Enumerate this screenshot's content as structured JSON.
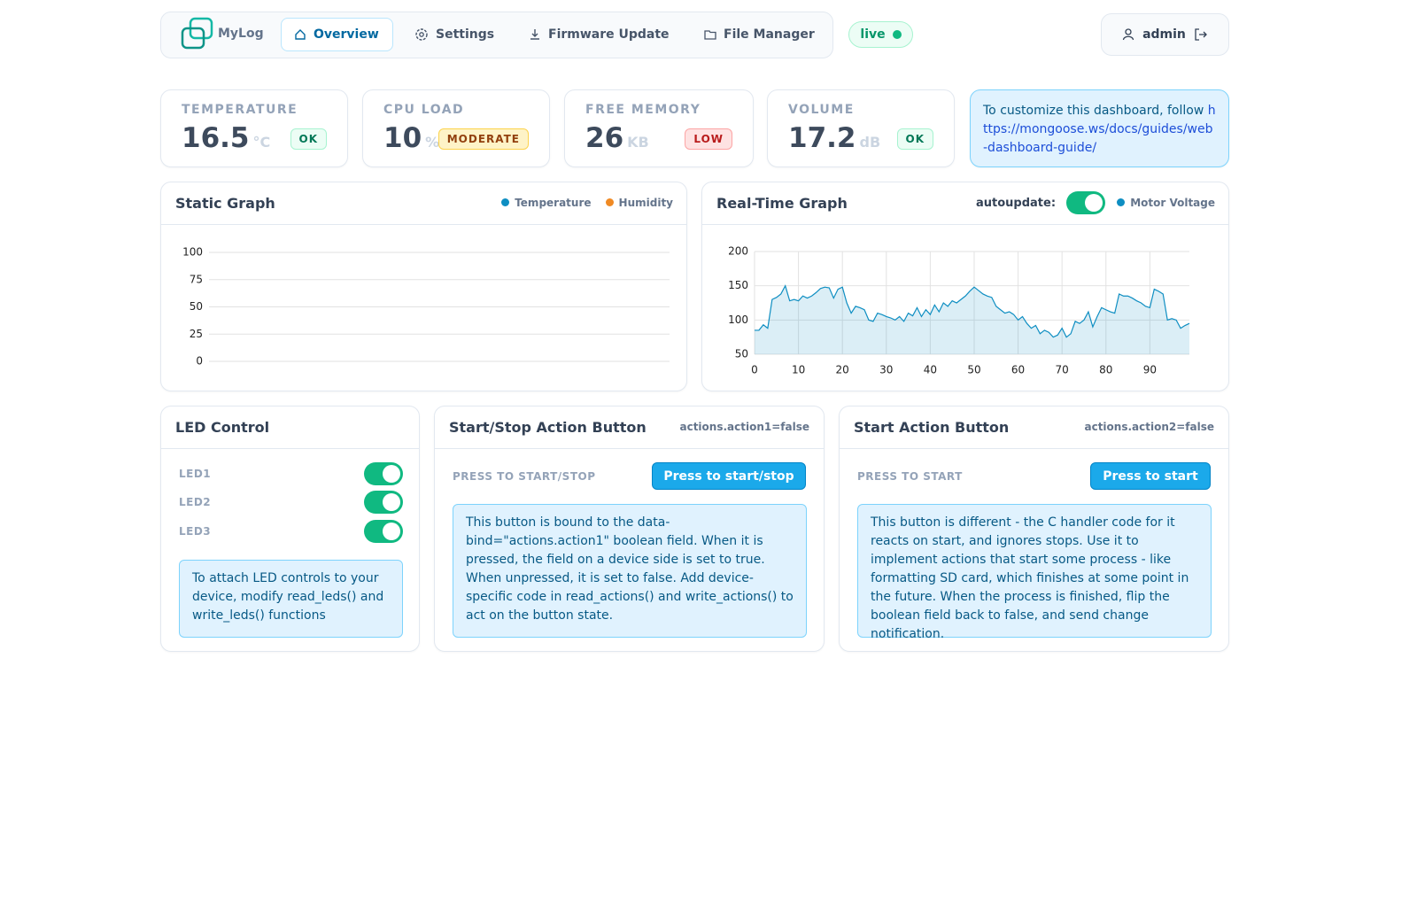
{
  "nav": {
    "brand": "MyLog",
    "items": [
      "Overview",
      "Settings",
      "Firmware Update",
      "File Manager"
    ],
    "status": "live",
    "user": "admin"
  },
  "stats": [
    {
      "label": "TEMPERATURE",
      "value": 16.5,
      "unit": "°C",
      "badge": "OK"
    },
    {
      "label": "CPU LOAD",
      "value": 10,
      "unit": "%",
      "badge": "MODERATE"
    },
    {
      "label": "FREE MEMORY",
      "value": 26,
      "unit": "KB",
      "badge": "LOW"
    },
    {
      "label": "VOLUME",
      "value": 17.2,
      "unit": "dB",
      "badge": "OK"
    }
  ],
  "info": {
    "text": "To customize this dashboard, follow",
    "link": "https://mongoose.ws/docs/guides/web-dashboard-guide/"
  },
  "static_graph": {
    "type": "line",
    "title": "Static Graph",
    "series": [
      {
        "name": "Temperature",
        "color": "#0e8ec2",
        "values": []
      },
      {
        "name": "Humidity",
        "color": "#f08a24",
        "values": []
      }
    ],
    "ylim": [
      0,
      100
    ],
    "yticks": [
      0,
      25,
      50,
      75,
      100
    ],
    "grid": true
  },
  "realtime_graph": {
    "type": "area",
    "title": "Real-Time Graph",
    "autoupdate": "autoupdate:",
    "x": [
      0,
      1,
      2,
      3,
      4,
      5,
      6,
      7,
      8,
      9,
      10,
      11,
      12,
      13,
      14,
      15,
      16,
      17,
      18,
      19,
      20,
      21,
      22,
      23,
      24,
      25,
      26,
      27,
      28,
      29,
      30,
      31,
      32,
      33,
      34,
      35,
      36,
      37,
      38,
      39,
      40,
      41,
      42,
      43,
      44,
      45,
      46,
      47,
      48,
      49,
      50,
      51,
      52,
      53,
      54,
      55,
      56,
      57,
      58,
      59,
      60,
      61,
      62,
      63,
      64,
      65,
      66,
      67,
      68,
      69,
      70,
      71,
      72,
      73,
      74,
      75,
      76,
      77,
      78,
      79,
      80,
      81,
      82,
      83,
      84,
      85,
      86,
      87,
      88,
      89,
      90,
      91,
      92,
      93,
      94,
      95,
      96,
      97,
      98,
      99
    ],
    "series": [
      {
        "name": "Motor Voltage",
        "color": "#0e8ec2",
        "values": [
          85,
          85,
          93,
          88,
          130,
          133,
          138,
          150,
          128,
          130,
          128,
          135,
          132,
          135,
          140,
          146,
          148,
          147,
          132,
          145,
          148,
          125,
          110,
          120,
          118,
          115,
          100,
          98,
          110,
          108,
          105,
          103,
          100,
          105,
          98,
          110,
          106,
          118,
          105,
          115,
          108,
          122,
          112,
          125,
          120,
          128,
          125,
          130,
          135,
          142,
          148,
          143,
          138,
          135,
          133,
          120,
          115,
          110,
          112,
          108,
          100,
          105,
          95,
          88,
          92,
          80,
          85,
          82,
          75,
          78,
          88,
          75,
          80,
          98,
          95,
          100,
          112,
          90,
          105,
          118,
          115,
          112,
          110,
          138,
          135,
          135,
          132,
          128,
          125,
          120,
          118,
          145,
          142,
          138,
          100,
          102,
          100,
          88,
          92,
          95
        ]
      }
    ],
    "xlim": [
      0,
      99
    ],
    "xticks": [
      0,
      10,
      20,
      30,
      40,
      50,
      60,
      70,
      80,
      90
    ],
    "ylim": [
      50,
      200
    ],
    "yticks": [
      50,
      100,
      150,
      200
    ],
    "grid": true
  },
  "led_control": {
    "title": "LED Control",
    "leds": [
      "LED1",
      "LED2",
      "LED3"
    ],
    "note": "To attach LED controls to your device, modify read_leds() and write_leds() functions"
  },
  "actions": [
    {
      "title": "Start/Stop Action Button",
      "state": "actions.action1=false",
      "label": "PRESS TO START/STOP",
      "button": "Press to start/stop",
      "text": "This button is bound to the data-bind=\"actions.action1\" boolean field. When it is pressed, the field on a device side is set to true. When unpressed, it is set to false. Add device-specific code in read_actions() and write_actions() to act on the button state."
    },
    {
      "title": "Start Action Button",
      "state": "actions.action2=false",
      "label": "PRESS TO START",
      "button": "Press to start",
      "text": "This button is different - the C handler code for it reacts on start, and ignores stops. Use it to implement actions that start some process - like formatting SD card, which finishes at some point in the future. When the process is finished, flip the boolean field back to false, and send change notification."
    }
  ]
}
